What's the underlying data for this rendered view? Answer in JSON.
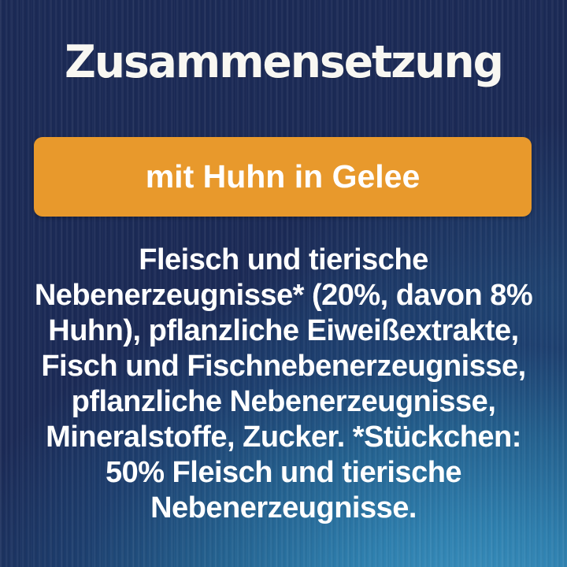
{
  "card": {
    "title": "Zusammensetzung",
    "banner": {
      "label": "mit Huhn in Gelee"
    },
    "composition": {
      "lines": [
        "Fleisch und tierische",
        "Nebenerzeugnisse* (20%, davon 8%",
        "Huhn), pflanzliche Eiweißextrakte,",
        "Fisch und Fischnebenerzeugnisse,",
        "pflanzliche Nebenerzeugnisse,",
        "Mineralstoffe, Zucker. *Stückchen:",
        "50% Fleisch und tierische",
        "Nebenerzeugnisse."
      ],
      "full_text": "Fleisch und tierische Nebenerzeugnisse* (20%, davon 8% Huhn), pflanzliche Eiweißextrakte, Fisch und Fischnebenerzeugnisse, pflanzliche Nebenerzeugnisse, Mineralstoffe, Zucker. *Stückchen: 50% Fleisch und tierische Nebenerzeugnisse."
    },
    "colors": {
      "background_navy": "#1B2A56",
      "background_glow_blue": "#3F9AC8",
      "banner_orange": "#E8992C",
      "text_white": "#FFFFFF"
    }
  }
}
